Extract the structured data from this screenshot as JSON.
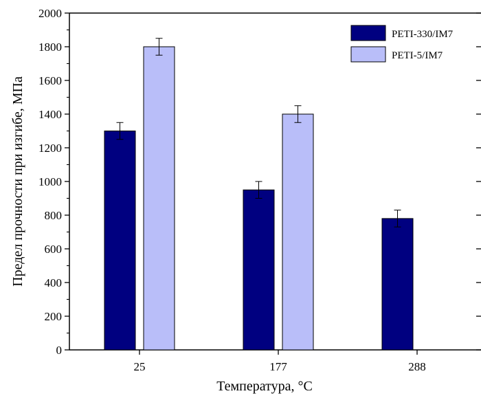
{
  "chart_data": {
    "type": "bar",
    "categories": [
      "25",
      "177",
      "288"
    ],
    "series": [
      {
        "name": "PETI-330/IM7",
        "color": "#000080",
        "values": [
          1300,
          950,
          780
        ],
        "errors": [
          50,
          50,
          50
        ]
      },
      {
        "name": "PETI-5/IM7",
        "color": "#b9bef9",
        "values": [
          1800,
          1400,
          null
        ],
        "errors": [
          50,
          50,
          null
        ]
      }
    ],
    "xlabel": "Температура, °C",
    "ylabel": "Предел прочности при изгибе, МПа",
    "ylim": [
      0,
      2000
    ],
    "yticks": [
      0,
      200,
      400,
      600,
      800,
      1000,
      1200,
      1400,
      1600,
      1800,
      2000
    ],
    "grid": false,
    "legend_position": "top-right"
  }
}
